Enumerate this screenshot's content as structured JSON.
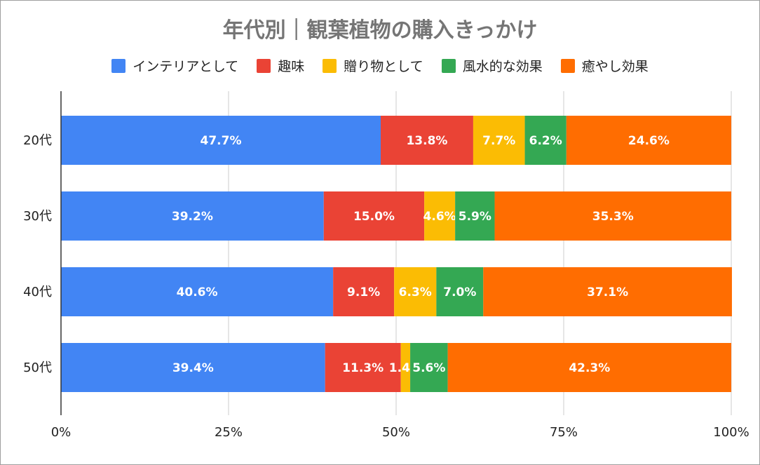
{
  "chart_data": {
    "type": "bar",
    "orientation": "horizontal",
    "stacked": true,
    "title": "年代別｜観葉植物の購入きっかけ",
    "categories": [
      "20代",
      "30代",
      "40代",
      "50代"
    ],
    "series": [
      {
        "name": "インテリアとして",
        "color": "#4285f4",
        "values": [
          47.7,
          39.2,
          40.6,
          39.4
        ],
        "labels": [
          "47.7%",
          "39.2%",
          "40.6%",
          "39.4%"
        ]
      },
      {
        "name": "趣味",
        "color": "#ea4335",
        "values": [
          13.8,
          15.0,
          9.1,
          11.3
        ],
        "labels": [
          "13.8%",
          "15.0%",
          "9.1%",
          "11.3%"
        ]
      },
      {
        "name": "贈り物として",
        "color": "#fbbc04",
        "values": [
          7.7,
          4.6,
          6.3,
          1.4
        ],
        "labels": [
          "7.7%",
          "4.6%",
          "6.3%",
          "1.4%"
        ]
      },
      {
        "name": "風水的な効果",
        "color": "#34a853",
        "values": [
          6.2,
          5.9,
          7.0,
          5.6
        ],
        "labels": [
          "6.2%",
          "5.9%",
          "7.0%",
          "5.6%"
        ]
      },
      {
        "name": "癒やし効果",
        "color": "#ff6d01",
        "values": [
          24.6,
          35.3,
          37.1,
          42.3
        ],
        "labels": [
          "24.6%",
          "35.3%",
          "37.1%",
          "42.3%"
        ]
      }
    ],
    "xlim": [
      0,
      100
    ],
    "xticks": [
      0,
      25,
      50,
      75,
      100
    ],
    "xtick_labels": [
      "0%",
      "25%",
      "50%",
      "75%",
      "100%"
    ],
    "grid": true,
    "legend_position": "top"
  }
}
